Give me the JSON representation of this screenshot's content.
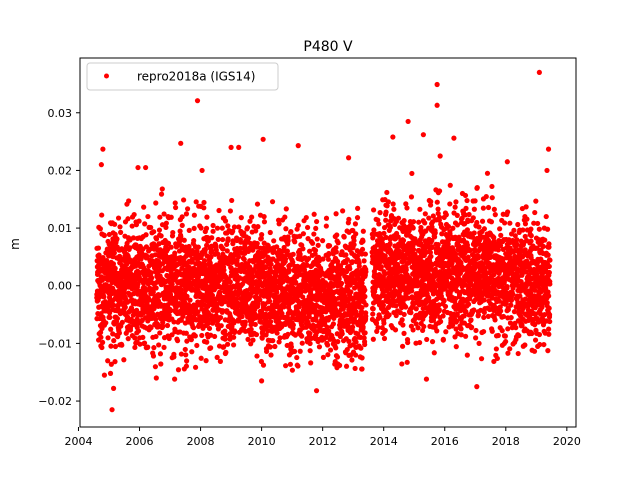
{
  "chart_data": {
    "type": "scatter",
    "title": "P480 V",
    "xlabel": "",
    "ylabel": "m",
    "xlim": [
      2004.05,
      2020.3
    ],
    "ylim": [
      -0.0245,
      0.0395
    ],
    "xticks": [
      2004,
      2006,
      2008,
      2010,
      2012,
      2014,
      2016,
      2018,
      2020
    ],
    "xtick_labels": [
      "2004",
      "2006",
      "2008",
      "2010",
      "2012",
      "2014",
      "2016",
      "2018",
      "2020"
    ],
    "yticks": [
      -0.02,
      -0.01,
      0.0,
      0.01,
      0.02,
      0.03
    ],
    "ytick_labels": [
      "−0.02",
      "−0.01",
      "0.00",
      "0.01",
      "0.02",
      "0.03"
    ],
    "grid": false,
    "legend": {
      "position": "upper-left",
      "entries": [
        "repro2018a (IGS14)"
      ]
    },
    "series": [
      {
        "name": "repro2018a (IGS14)",
        "color": "#ff0000",
        "marker": "dot",
        "x_range": [
          2004.6,
          2019.45
        ],
        "y_bulk_range": [
          -0.012,
          0.015
        ],
        "approx_points": 5300,
        "highlighted_points": [
          {
            "x": 2019.1,
            "y": 0.037
          },
          {
            "x": 2015.75,
            "y": 0.0349
          },
          {
            "x": 2015.75,
            "y": 0.0313
          },
          {
            "x": 2007.9,
            "y": 0.0321
          },
          {
            "x": 2014.8,
            "y": 0.0285
          },
          {
            "x": 2015.3,
            "y": 0.0262
          },
          {
            "x": 2014.3,
            "y": 0.0258
          },
          {
            "x": 2016.3,
            "y": 0.0256
          },
          {
            "x": 2010.05,
            "y": 0.0254
          },
          {
            "x": 2007.35,
            "y": 0.0247
          },
          {
            "x": 2011.2,
            "y": 0.0243
          },
          {
            "x": 2004.8,
            "y": 0.0237
          },
          {
            "x": 2019.4,
            "y": 0.0237
          },
          {
            "x": 2009.0,
            "y": 0.024
          },
          {
            "x": 2009.25,
            "y": 0.024
          },
          {
            "x": 2012.85,
            "y": 0.0222
          },
          {
            "x": 2015.85,
            "y": 0.0225
          },
          {
            "x": 2018.05,
            "y": 0.0215
          },
          {
            "x": 2004.75,
            "y": 0.021
          },
          {
            "x": 2005.95,
            "y": 0.0205
          },
          {
            "x": 2006.2,
            "y": 0.0205
          },
          {
            "x": 2008.05,
            "y": 0.02
          },
          {
            "x": 2019.35,
            "y": 0.02
          },
          {
            "x": 2017.4,
            "y": 0.0195
          },
          {
            "x": 2004.85,
            "y": -0.0155
          },
          {
            "x": 2005.05,
            "y": -0.0152
          },
          {
            "x": 2006.55,
            "y": -0.016
          },
          {
            "x": 2007.15,
            "y": -0.0162
          },
          {
            "x": 2010.0,
            "y": -0.0165
          },
          {
            "x": 2015.4,
            "y": -0.0162
          },
          {
            "x": 2011.8,
            "y": -0.0182
          },
          {
            "x": 2017.05,
            "y": -0.0175
          },
          {
            "x": 2005.15,
            "y": -0.0178
          },
          {
            "x": 2005.1,
            "y": -0.0215
          }
        ]
      }
    ]
  }
}
